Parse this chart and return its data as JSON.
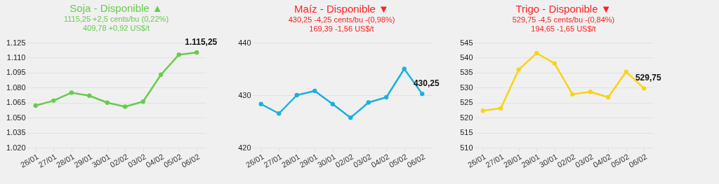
{
  "chart_data": [
    {
      "type": "line",
      "title": "Soja - Disponible ▲",
      "subtitle": "1115,25 +2,5 cents/bu (0,22%)\n409,78 +0,92 US$/t",
      "categories": [
        "26/01",
        "27/01",
        "28/01",
        "29/01",
        "30/01",
        "02/02",
        "03/02",
        "04/02",
        "05/02",
        "06/02"
      ],
      "series": [
        {
          "color": "#66cc4d",
          "values": [
            1062,
            1067,
            1075,
            1072,
            1065,
            1061,
            1066,
            1093,
            1113,
            1115.25
          ],
          "value_labels": [
            null,
            null,
            null,
            null,
            null,
            null,
            null,
            null,
            null,
            "1.115,25"
          ]
        }
      ],
      "ylim": [
        1020,
        1125
      ],
      "yticks": [
        {
          "value": 1020,
          "label": "1.020"
        },
        {
          "value": 1035,
          "label": "1.035"
        },
        {
          "value": 1050,
          "label": "1.050"
        },
        {
          "value": 1065,
          "label": "1.065"
        },
        {
          "value": 1080,
          "label": "1.080"
        },
        {
          "value": 1095,
          "label": "1.095"
        },
        {
          "value": 1110,
          "label": "1.110"
        },
        {
          "value": 1125,
          "label": "1.125"
        }
      ],
      "grid": "y",
      "marker": "circle"
    },
    {
      "type": "line",
      "title": "Maíz - Disponible ▼",
      "subtitle": "430,25 -4,25 cents/bu -(0,98%)\n169,39 -1,56 US$/t",
      "categories": [
        "26/01",
        "27/01",
        "28/01",
        "29/01",
        "30/01",
        "02/02",
        "03/02",
        "04/02",
        "05/02",
        "06/02"
      ],
      "series": [
        {
          "color": "#1ab0e0",
          "values": [
            428.3,
            426.5,
            430.0,
            430.8,
            428.3,
            425.7,
            428.6,
            429.6,
            435.0,
            430.25
          ],
          "value_labels": [
            null,
            null,
            null,
            null,
            null,
            null,
            null,
            null,
            null,
            "430,25"
          ]
        }
      ],
      "ylim": [
        420,
        440
      ],
      "yticks": [
        420,
        430,
        440
      ],
      "grid": "y",
      "marker": "circle"
    },
    {
      "type": "line",
      "title": "Trigo - Disponible ▼",
      "subtitle": "529,75 -4,5 cents/bu -(0,84%)\n194,65 -1,65 US$/t",
      "categories": [
        "26/01",
        "27/01",
        "28/01",
        "29/01",
        "30/01",
        "02/02",
        "03/02",
        "04/02",
        "05/02",
        "06/02"
      ],
      "series": [
        {
          "color": "#f7d417",
          "values": [
            522.3,
            523.1,
            536.0,
            541.5,
            538.1,
            527.8,
            528.6,
            526.8,
            535.3,
            529.75
          ],
          "value_labels": [
            null,
            null,
            null,
            null,
            null,
            null,
            null,
            null,
            null,
            "529,75"
          ]
        }
      ],
      "ylim": [
        510,
        545
      ],
      "yticks": [
        510,
        515,
        520,
        525,
        530,
        535,
        540,
        545
      ],
      "grid": "y",
      "marker": "circle"
    }
  ]
}
